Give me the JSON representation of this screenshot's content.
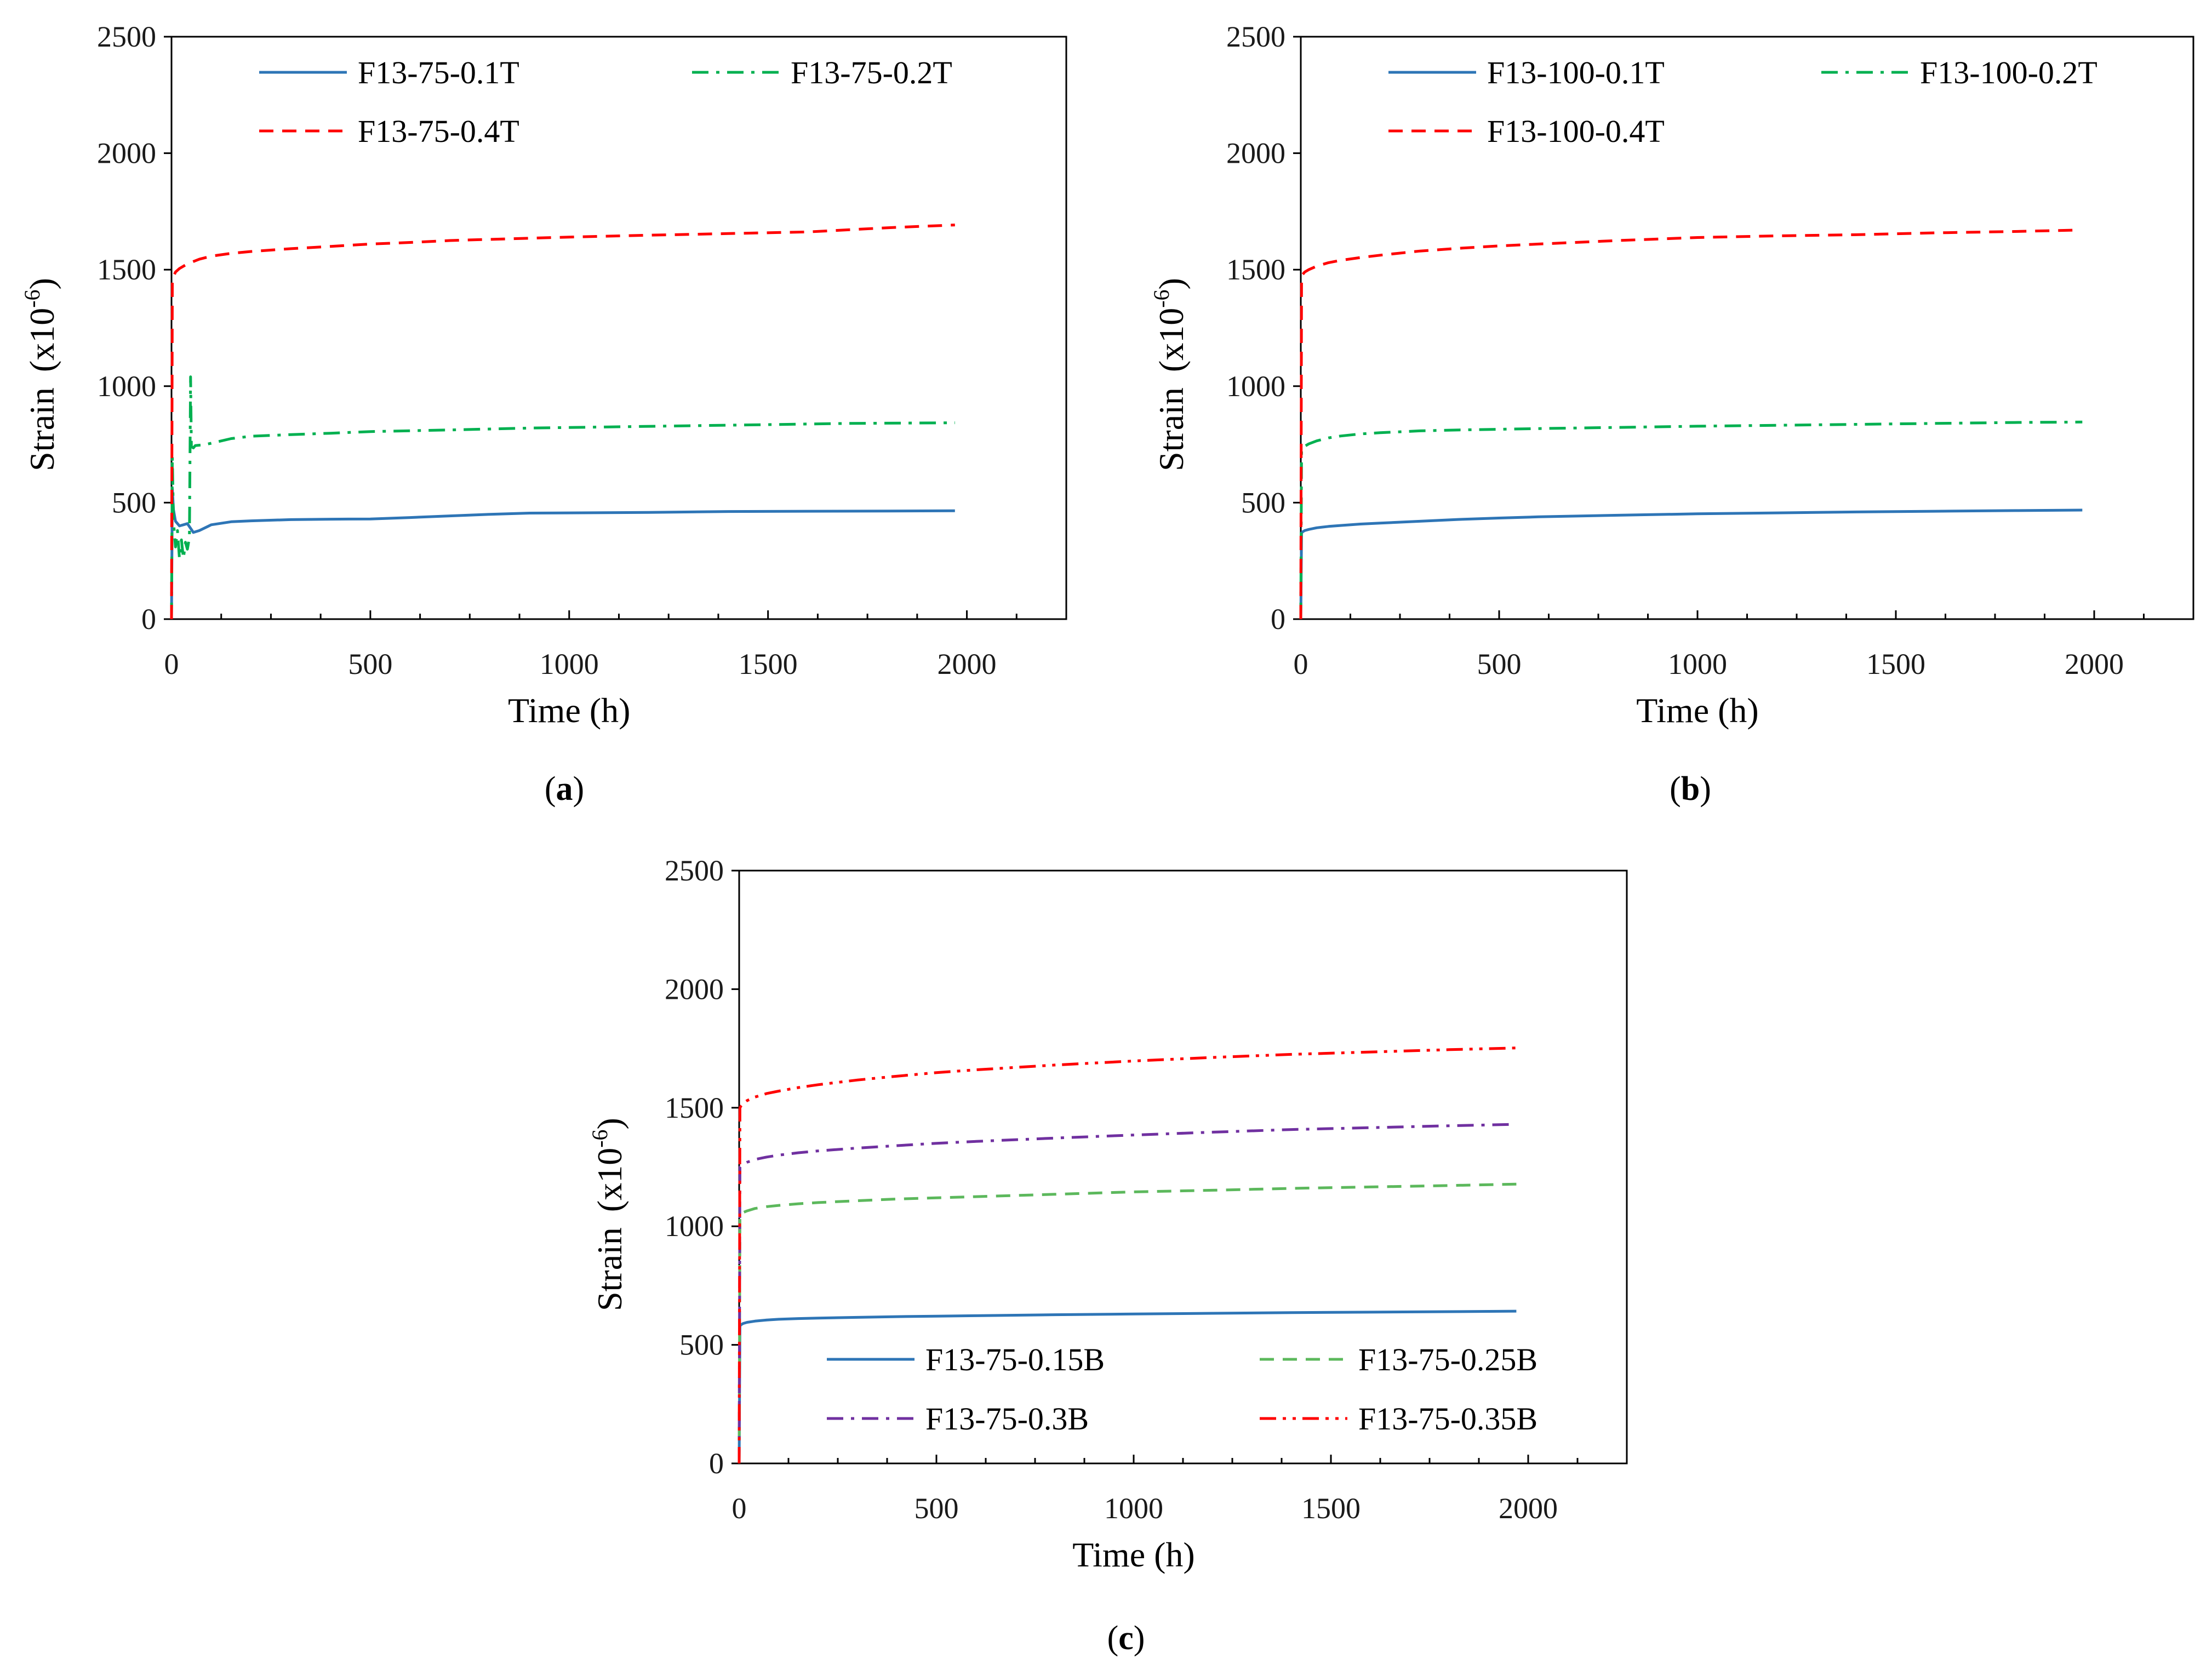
{
  "chart_data": [
    {
      "type": "line",
      "panel_label": "a",
      "caption_open": "(",
      "caption_close": ")",
      "xlabel": "Time (h)",
      "ylabel": "Strain",
      "ylabel_unit_prefix": "(x10",
      "ylabel_unit_exp": "-6",
      "ylabel_unit_suffix": ")",
      "xlim": [
        0,
        2250
      ],
      "ylim": [
        0,
        2500
      ],
      "x_ticks": [
        0,
        500,
        1000,
        1500,
        2000
      ],
      "x_tick_labels": [
        "0",
        "500",
        "1000",
        "1500",
        "2000"
      ],
      "y_ticks": [
        0,
        500,
        1000,
        1500,
        2000,
        2500
      ],
      "y_tick_labels": [
        "0",
        "500",
        "1000",
        "1500",
        "2000",
        "2500"
      ],
      "legend_position": "top",
      "series": [
        {
          "name": "F13-75-0.1T",
          "color": "#2e75b6",
          "dash": "solid",
          "x": [
            0,
            2,
            5,
            10,
            20,
            30,
            40,
            55,
            70,
            100,
            150,
            200,
            300,
            400,
            500,
            600,
            700,
            800,
            900,
            1000,
            1200,
            1400,
            1600,
            1800,
            1970
          ],
          "y": [
            0,
            560,
            470,
            420,
            400,
            405,
            410,
            372,
            380,
            405,
            418,
            422,
            427,
            429,
            430,
            436,
            443,
            450,
            455,
            456,
            458,
            462,
            463,
            464,
            465
          ]
        },
        {
          "name": "F13-75-0.2T",
          "color": "#00b050",
          "dash": "dashdot",
          "x": [
            0,
            2,
            5,
            10,
            15,
            20,
            25,
            30,
            35,
            40,
            45,
            48,
            50,
            55,
            60,
            80,
            100,
            150,
            200,
            300,
            400,
            500,
            700,
            900,
            1100,
            1300,
            1500,
            1700,
            1970
          ],
          "y": [
            0,
            700,
            420,
            310,
            380,
            260,
            340,
            260,
            330,
            300,
            350,
            1040,
            740,
            735,
            745,
            748,
            755,
            775,
            785,
            792,
            798,
            805,
            812,
            820,
            825,
            830,
            835,
            840,
            843
          ]
        },
        {
          "name": "F13-75-0.4T",
          "color": "#ff0000",
          "dash": "dashed",
          "x": [
            0,
            2,
            5,
            10,
            20,
            40,
            70,
            100,
            150,
            200,
            300,
            400,
            500,
            600,
            700,
            800,
            1000,
            1200,
            1400,
            1600,
            1800,
            1970
          ],
          "y": [
            0,
            1440,
            1470,
            1490,
            1505,
            1525,
            1545,
            1558,
            1570,
            1578,
            1590,
            1600,
            1610,
            1617,
            1625,
            1630,
            1640,
            1648,
            1655,
            1662,
            1680,
            1692
          ]
        }
      ]
    },
    {
      "type": "line",
      "panel_label": "b",
      "caption_open": "(",
      "caption_close": ")",
      "xlabel": "Time (h)",
      "ylabel": "Strain",
      "ylabel_unit_prefix": "(x10",
      "ylabel_unit_exp": "-6",
      "ylabel_unit_suffix": ")",
      "xlim": [
        0,
        2250
      ],
      "ylim": [
        0,
        2500
      ],
      "x_ticks": [
        0,
        500,
        1000,
        1500,
        2000
      ],
      "x_tick_labels": [
        "0",
        "500",
        "1000",
        "1500",
        "2000"
      ],
      "y_ticks": [
        0,
        500,
        1000,
        1500,
        2000,
        2500
      ],
      "y_tick_labels": [
        "0",
        "500",
        "1000",
        "1500",
        "2000",
        "2500"
      ],
      "legend_position": "top",
      "series": [
        {
          "name": "F13-100-0.1T",
          "color": "#2e75b6",
          "dash": "solid",
          "x": [
            0,
            2,
            5,
            10,
            20,
            40,
            70,
            100,
            150,
            200,
            300,
            400,
            500,
            600,
            800,
            1000,
            1200,
            1400,
            1600,
            1800,
            1970
          ],
          "y": [
            0,
            370,
            375,
            380,
            385,
            392,
            398,
            402,
            408,
            412,
            420,
            428,
            434,
            439,
            446,
            452,
            456,
            460,
            463,
            466,
            468
          ]
        },
        {
          "name": "F13-100-0.2T",
          "color": "#00b050",
          "dash": "dashdot",
          "x": [
            0,
            2,
            5,
            10,
            20,
            40,
            70,
            100,
            150,
            200,
            300,
            400,
            500,
            600,
            800,
            1000,
            1200,
            1400,
            1600,
            1800,
            1970
          ],
          "y": [
            0,
            730,
            735,
            742,
            752,
            765,
            778,
            786,
            795,
            800,
            808,
            812,
            815,
            818,
            823,
            828,
            832,
            836,
            840,
            844,
            846
          ]
        },
        {
          "name": "F13-100-0.4T",
          "color": "#ff0000",
          "dash": "dashed",
          "x": [
            0,
            2,
            5,
            10,
            20,
            40,
            70,
            100,
            150,
            200,
            300,
            400,
            500,
            600,
            800,
            1000,
            1200,
            1400,
            1600,
            1800,
            1960
          ],
          "y": [
            0,
            1470,
            1480,
            1490,
            1500,
            1515,
            1530,
            1540,
            1552,
            1562,
            1580,
            1592,
            1602,
            1610,
            1625,
            1638,
            1645,
            1650,
            1658,
            1664,
            1670
          ]
        }
      ]
    },
    {
      "type": "line",
      "panel_label": "c",
      "caption_open": "(",
      "caption_close": ")",
      "xlabel": "Time (h)",
      "ylabel": "Strain",
      "ylabel_unit_prefix": "(x10",
      "ylabel_unit_exp": "-6",
      "ylabel_unit_suffix": ")",
      "xlim": [
        0,
        2250
      ],
      "ylim": [
        0,
        2500
      ],
      "x_ticks": [
        0,
        500,
        1000,
        1500,
        2000
      ],
      "x_tick_labels": [
        "0",
        "500",
        "1000",
        "1500",
        "2000"
      ],
      "y_ticks": [
        0,
        500,
        1000,
        1500,
        2000,
        2500
      ],
      "y_tick_labels": [
        "0",
        "500",
        "1000",
        "1500",
        "2000",
        "2500"
      ],
      "legend_position": "bottom",
      "series": [
        {
          "name": "F13-75-0.15B",
          "color": "#2e75b6",
          "dash": "solid",
          "x": [
            0,
            2,
            5,
            10,
            20,
            40,
            70,
            100,
            150,
            200,
            300,
            400,
            500,
            600,
            800,
            1000,
            1200,
            1400,
            1600,
            1800,
            1970
          ],
          "y": [
            0,
            580,
            585,
            590,
            595,
            600,
            605,
            608,
            611,
            613,
            616,
            619,
            621,
            623,
            627,
            630,
            633,
            636,
            638,
            640,
            642
          ]
        },
        {
          "name": "F13-75-0.25B",
          "color": "#5cb85c",
          "dash": "dashed",
          "x": [
            0,
            2,
            5,
            10,
            20,
            40,
            70,
            100,
            150,
            200,
            300,
            400,
            500,
            600,
            800,
            1000,
            1200,
            1400,
            1600,
            1800,
            1970
          ],
          "y": [
            0,
            1045,
            1050,
            1058,
            1065,
            1075,
            1083,
            1088,
            1095,
            1100,
            1108,
            1115,
            1120,
            1125,
            1135,
            1145,
            1152,
            1160,
            1166,
            1172,
            1178
          ]
        },
        {
          "name": "F13-75-0.3B",
          "color": "#7030a0",
          "dash": "dashdot",
          "x": [
            0,
            2,
            5,
            10,
            20,
            40,
            70,
            100,
            150,
            200,
            300,
            400,
            500,
            600,
            800,
            1000,
            1200,
            1400,
            1600,
            1800,
            1970
          ],
          "y": [
            0,
            1250,
            1255,
            1262,
            1270,
            1282,
            1292,
            1300,
            1310,
            1318,
            1330,
            1340,
            1350,
            1358,
            1372,
            1385,
            1397,
            1408,
            1416,
            1424,
            1430
          ]
        },
        {
          "name": "F13-75-0.35B",
          "color": "#ff0000",
          "dash": "dashdotdot",
          "x": [
            0,
            2,
            5,
            10,
            20,
            40,
            70,
            100,
            150,
            200,
            300,
            400,
            500,
            600,
            800,
            1000,
            1200,
            1400,
            1600,
            1800,
            1970
          ],
          "y": [
            0,
            1500,
            1508,
            1518,
            1530,
            1545,
            1560,
            1570,
            1585,
            1597,
            1617,
            1633,
            1648,
            1660,
            1680,
            1697,
            1712,
            1725,
            1735,
            1745,
            1752
          ]
        }
      ]
    }
  ]
}
